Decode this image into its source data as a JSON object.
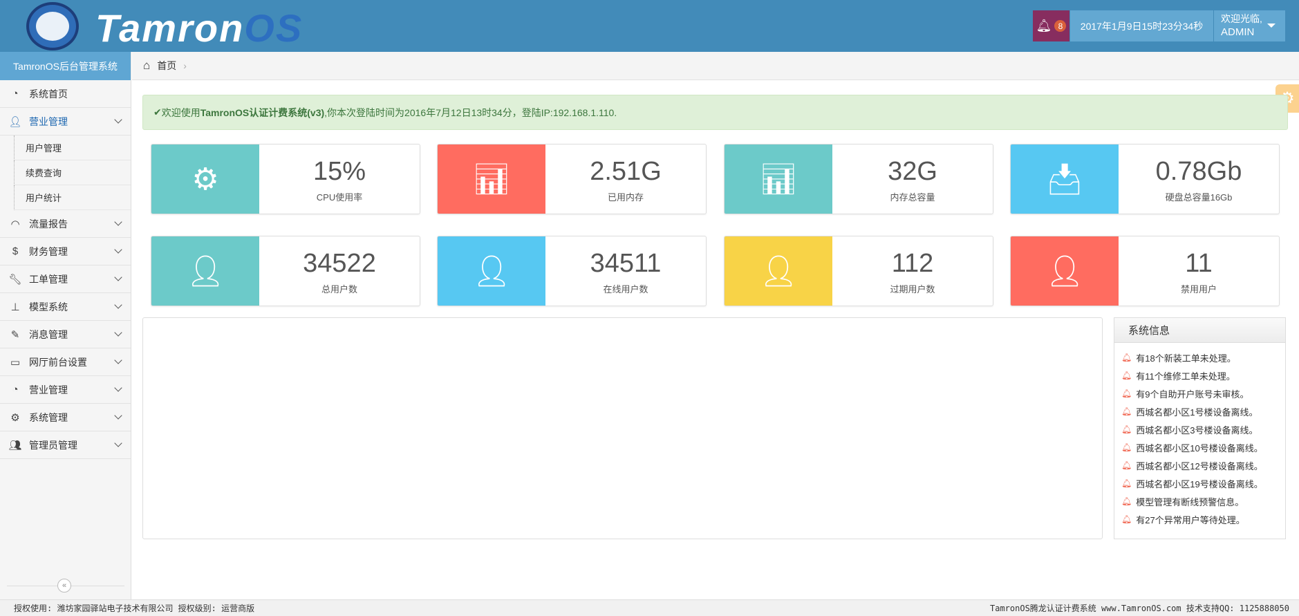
{
  "header": {
    "logo_text_a": "Tamron",
    "logo_text_b": "OS",
    "notification_count": "8",
    "datetime": "2017年1月9日15时23分34秒",
    "welcome": "欢迎光临,",
    "user": "ADMIN"
  },
  "sidebar": {
    "title": "TamronOS后台管理系统",
    "items": [
      {
        "label": "系统首页",
        "icon": "dashboard-icon"
      },
      {
        "label": "营业管理",
        "icon": "user-icon",
        "sub": [
          "用户管理",
          "续费查询",
          "用户统计"
        ]
      },
      {
        "label": "流量报告",
        "icon": "rss-icon"
      },
      {
        "label": "财务管理",
        "icon": "dollar-icon"
      },
      {
        "label": "工单管理",
        "icon": "wrench-icon"
      },
      {
        "label": "模型系统",
        "icon": "sitemap-icon"
      },
      {
        "label": "消息管理",
        "icon": "edit-icon"
      },
      {
        "label": "网厅前台设置",
        "icon": "desktop-icon"
      },
      {
        "label": "营业管理",
        "icon": "dashboard-icon"
      },
      {
        "label": "系统管理",
        "icon": "gears-icon"
      },
      {
        "label": "管理员管理",
        "icon": "users-icon"
      }
    ],
    "collapse": "«"
  },
  "breadcrumb": {
    "home": "首页"
  },
  "alert": {
    "pre": "欢迎使用",
    "bold": "TamronOS认证计费系统(v3)",
    "post": ",你本次登陆时间为2016年7月12日13时34分，登陆IP:192.168.1.110."
  },
  "cards": [
    {
      "value": "15%",
      "label": "CPU使用率",
      "color": "#6ccac9",
      "icon": "gears-icon"
    },
    {
      "value": "2.51G",
      "label": "已用内存",
      "color": "#ff6c60",
      "icon": "bar-chart-icon"
    },
    {
      "value": "32G",
      "label": "内存总容量",
      "color": "#6ccac9",
      "icon": "bar-chart-icon"
    },
    {
      "value": "0.78Gb",
      "label": "硬盘总容量16Gb",
      "color": "#57c8f2",
      "icon": "inbox-icon"
    },
    {
      "value": "34522",
      "label": "总用户数",
      "color": "#6ccac9",
      "icon": "user-icon"
    },
    {
      "value": "34511",
      "label": "在线用户数",
      "color": "#57c8f2",
      "icon": "user-icon"
    },
    {
      "value": "112",
      "label": "过期用户数",
      "color": "#f8d347",
      "icon": "user-icon"
    },
    {
      "value": "11",
      "label": "禁用用户",
      "color": "#ff6c60",
      "icon": "user-icon"
    }
  ],
  "info": {
    "title": "系统信息",
    "items": [
      "有18个新装工单未处理。",
      "有11个维修工单未处理。",
      "有9个自助开户账号未审核。",
      "西城名都小区1号楼设备离线。",
      "西城名都小区3号楼设备离线。",
      "西城名都小区10号楼设备离线。",
      "西城名都小区12号楼设备离线。",
      "西城名都小区19号楼设备离线。",
      "模型管理有断线预警信息。",
      "有27个异常用户等待处理。"
    ]
  },
  "footer": {
    "left": "授权使用: 潍坊家园驿站电子技术有限公司 授权级别: 运营商版",
    "right": "TamronOS腾龙认证计费系统 www.TamronOS.com 技术支持QQ: 1125888050"
  }
}
